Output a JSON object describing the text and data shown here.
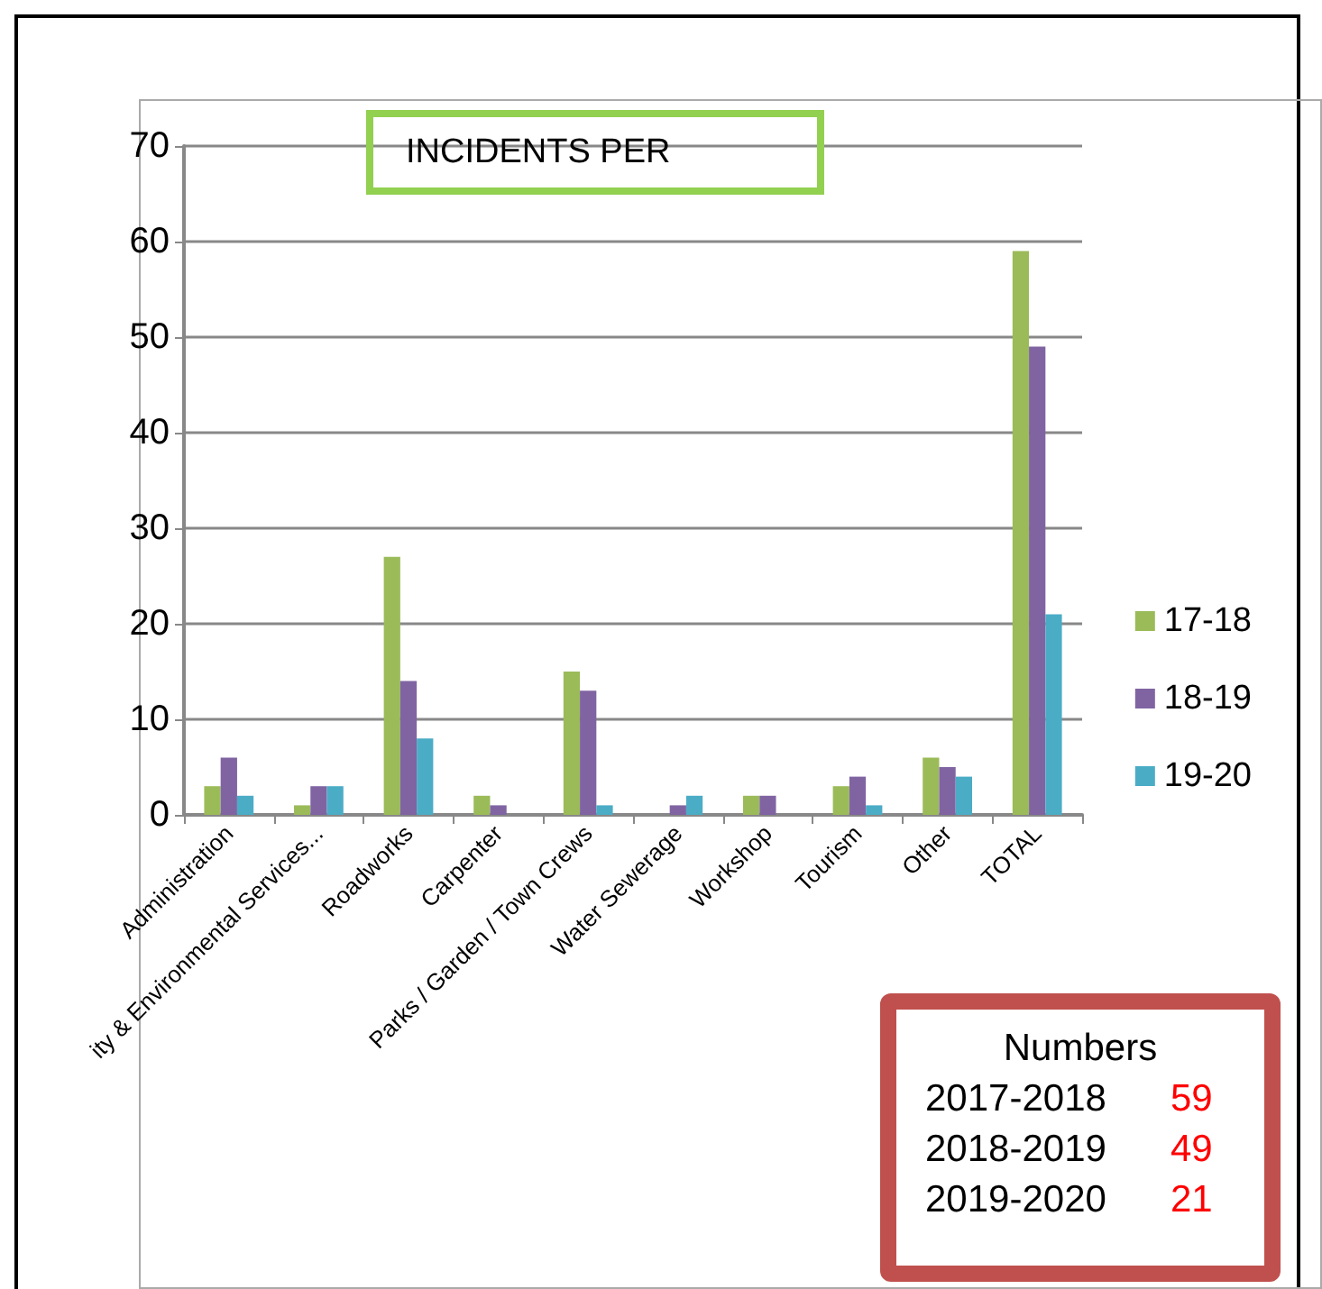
{
  "chart_data": {
    "type": "bar",
    "title": "INCIDENTS PER",
    "categories": [
      "Administration",
      "ity & Environmental Services...",
      "Roadworks",
      "Carpenter",
      "Parks / Garden / Town Crews",
      "Water Sewerage",
      "Workshop",
      "Tourism",
      "Other",
      "TOTAL"
    ],
    "series": [
      {
        "name": "17-18",
        "color": "#9bbb59",
        "values": [
          3,
          1,
          27,
          2,
          15,
          0,
          2,
          3,
          6,
          59
        ]
      },
      {
        "name": "18-19",
        "color": "#8064a2",
        "values": [
          6,
          3,
          14,
          1,
          13,
          1,
          2,
          4,
          5,
          49
        ]
      },
      {
        "name": "19-20",
        "color": "#4bacc6",
        "values": [
          2,
          3,
          8,
          0,
          1,
          2,
          0,
          1,
          4,
          21
        ]
      }
    ],
    "ylim": [
      0,
      70
    ],
    "yticks": [
      0,
      10,
      20,
      30,
      40,
      50,
      60,
      70
    ],
    "grid": "y",
    "legend": "right",
    "annotations": [
      "Numbers",
      "2017-2018",
      "59",
      "2018-2019",
      "49",
      "2019-2020",
      "21"
    ]
  }
}
